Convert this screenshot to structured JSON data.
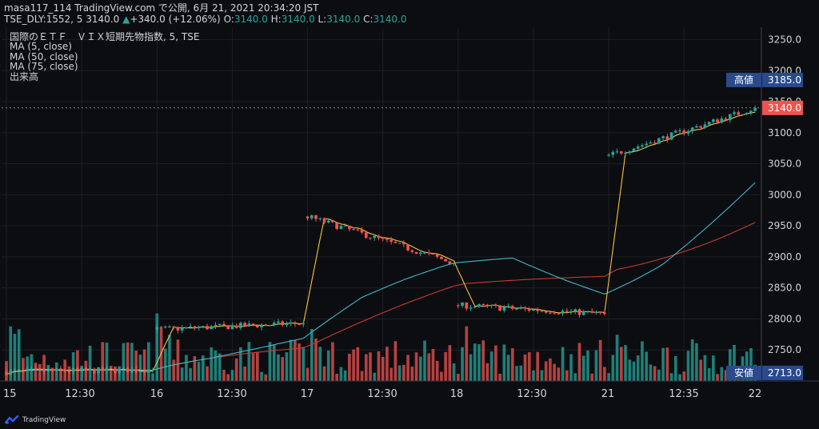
{
  "header": {
    "line1": "masa117_114 TradingView.com で公開, 6月 21, 2021 20:34:20 JST",
    "symbol": "TSE_DLY:1552, 5",
    "last": "3140.0",
    "change": "+340.0 (+12.06%)",
    "ohlc_prefix": " O:",
    "open": "3140.0",
    "high_prefix": " H:",
    "high": "3140.0",
    "low_prefix": " L:",
    "low": "3140.0",
    "close_prefix": " C:",
    "close": "3140.0"
  },
  "legend": {
    "title": "国際のＥＴＦ　ＶＩＸ短期先物指数, 5, TSE",
    "ma5": "MA (5, close)",
    "ma50": "MA (50, close)",
    "ma75": "MA (75, close)",
    "volume": "出来高"
  },
  "brand": "TradingView",
  "colors": {
    "background": "#0c0d11",
    "up": "#26a69a",
    "down": "#ef5350",
    "ma5": "#f6c342",
    "ma50": "#3fb7c9",
    "ma75": "#c43b34",
    "label_blue": "#2a4a8c",
    "last_price": "#ef5350"
  },
  "chart_data": {
    "type": "candlestick",
    "y_axis": {
      "min": 2700,
      "max": 3270,
      "ticks": [
        3250.0,
        3200.0,
        3150.0,
        3100.0,
        3050.0,
        3000.0,
        2950.0,
        2900.0,
        2850.0,
        2800.0,
        2750.0
      ]
    },
    "x_ticks": [
      "15",
      "12:30",
      "16",
      "12:30",
      "17",
      "12:30",
      "18",
      "12:30",
      "21",
      "12:35",
      "22"
    ],
    "x_tick_positions": [
      0,
      1,
      2,
      3,
      4,
      5,
      6,
      7,
      8,
      9,
      10
    ],
    "sessions": [
      {
        "label": "15",
        "bars": 36,
        "open": 2715,
        "close": 2718,
        "high": 2745,
        "low": 2705
      },
      {
        "label": "16",
        "bars": 36,
        "open": 2783,
        "close": 2793,
        "high": 2803,
        "low": 2775
      },
      {
        "label": "17",
        "bars": 36,
        "open": 2965,
        "close": 2890,
        "high": 2968,
        "low": 2885
      },
      {
        "label": "18",
        "bars": 36,
        "open": 2822,
        "close": 2808,
        "high": 2825,
        "low": 2793
      },
      {
        "label": "21",
        "bars": 36,
        "open": 3063,
        "close": 3140,
        "high": 3175,
        "low": 3050
      }
    ],
    "price_labels": [
      {
        "name": "高値",
        "value": "3185.0"
      },
      {
        "name": "last",
        "value": "3140.0"
      },
      {
        "name": "安値",
        "value": "2713.0"
      }
    ]
  }
}
